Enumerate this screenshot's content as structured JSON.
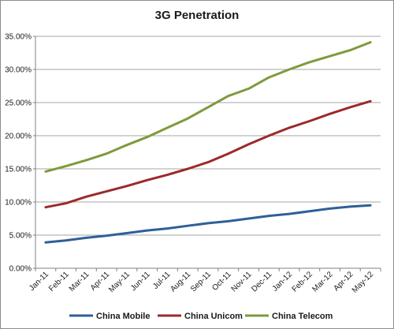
{
  "chart_data": {
    "type": "line",
    "title": "3G Penetration",
    "xlabel": "",
    "ylabel": "",
    "ylim": [
      0,
      35
    ],
    "y_ticks": [
      "0.00%",
      "5.00%",
      "10.00%",
      "15.00%",
      "20.00%",
      "25.00%",
      "30.00%",
      "35.00%"
    ],
    "grid": true,
    "legend_position": "bottom",
    "categories": [
      "Jan-11",
      "Feb-11",
      "Mar-11",
      "Apr-11",
      "May-11",
      "Jun-11",
      "Jul-11",
      "Aug-11",
      "Sep-11",
      "Oct-11",
      "Nov-11",
      "Dec-11",
      "Jan-12",
      "Feb-12",
      "Mar-12",
      "Apr-12",
      "May-12"
    ],
    "series": [
      {
        "name": "China Mobile",
        "color": "#2f5f98",
        "values": [
          3.9,
          4.2,
          4.6,
          4.9,
          5.3,
          5.7,
          6.0,
          6.4,
          6.8,
          7.1,
          7.5,
          7.9,
          8.2,
          8.6,
          9.0,
          9.3,
          9.5
        ]
      },
      {
        "name": "China Unicom",
        "color": "#9b2a2c",
        "values": [
          9.2,
          9.8,
          10.8,
          11.6,
          12.4,
          13.3,
          14.1,
          15.0,
          16.0,
          17.3,
          18.7,
          20.0,
          21.2,
          22.2,
          23.3,
          24.3,
          25.2
        ]
      },
      {
        "name": "China Telecom",
        "color": "#7e9a3c",
        "values": [
          14.6,
          15.4,
          16.3,
          17.3,
          18.6,
          19.8,
          21.2,
          22.6,
          24.3,
          26.0,
          27.1,
          28.8,
          30.0,
          31.1,
          32.0,
          32.9,
          34.1
        ]
      }
    ],
    "gridline_color": "#a6a6a6",
    "axis_color": "#808080"
  }
}
